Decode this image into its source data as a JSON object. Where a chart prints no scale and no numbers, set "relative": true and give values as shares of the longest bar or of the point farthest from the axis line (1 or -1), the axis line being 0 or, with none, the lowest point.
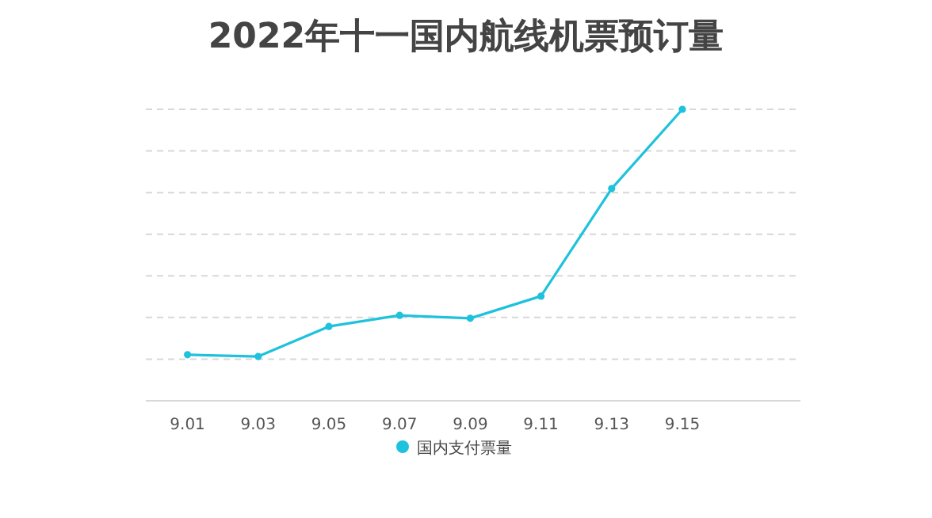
{
  "chart_data": {
    "type": "line",
    "title": "2022年十一国内航线机票预订量",
    "categories": [
      "9.01",
      "9.03",
      "9.05",
      "9.07",
      "9.09",
      "9.11",
      "9.13",
      "9.15"
    ],
    "series": [
      {
        "name": "国内支付票量",
        "color": "#1fc2dc",
        "values": [
          0.158,
          0.152,
          0.255,
          0.293,
          0.283,
          0.359,
          0.728,
          1
        ]
      }
    ],
    "relative": true,
    "grid": "y",
    "legend": "bottom",
    "marker": "circle",
    "line_style": "solid"
  }
}
